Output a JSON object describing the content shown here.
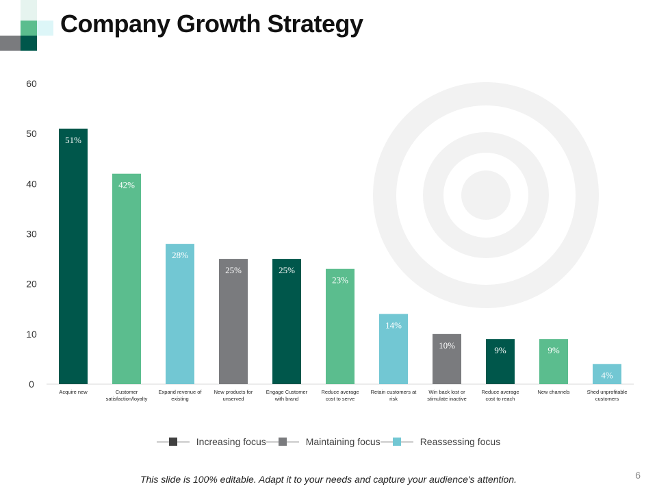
{
  "slide": {
    "title": "Company Growth Strategy",
    "footer": "This slide is 100% editable. Adapt it to your needs and capture your audience's attention.",
    "page_number": "6"
  },
  "colors": {
    "increasing": "#00574B",
    "increasing_swatch": "#404040",
    "maintaining": "#7A7B7E",
    "reassessing": "#72C7D3",
    "green_light": "#5BBD8E",
    "title": "#111111",
    "deco_ring": "#F2F2F2"
  },
  "chart_data": {
    "type": "bar",
    "title": "",
    "xlabel": "",
    "ylabel": "",
    "ylim": [
      0,
      60
    ],
    "yticks": [
      0,
      10,
      20,
      30,
      40,
      50,
      60
    ],
    "grid": false,
    "categories": [
      [
        "Acquire new"
      ],
      [
        "Customer",
        "satisfaction/loyalty"
      ],
      [
        "Expand revenue of",
        "existing"
      ],
      [
        "New products for",
        "unserved"
      ],
      [
        "Engage Customer",
        "with brand"
      ],
      [
        "Reduce average",
        "cost to serve"
      ],
      [
        "Retain customers at",
        "risk"
      ],
      [
        "Win back lost or",
        "stimulate inactive"
      ],
      [
        "Reduce average",
        "cost to reach"
      ],
      [
        "New channels"
      ],
      [
        "Shed unprofitable",
        "customers"
      ]
    ],
    "values": [
      51,
      42,
      28,
      25,
      25,
      23,
      14,
      10,
      9,
      9,
      4
    ],
    "data_labels": [
      "51%",
      "42%",
      "28%",
      "25%",
      "25%",
      "23%",
      "14%",
      "10%",
      "9%",
      "9%",
      "4%"
    ],
    "bar_colors": [
      "#00574B",
      "#5BBD8E",
      "#72C7D3",
      "#7A7B7E",
      "#00574B",
      "#5BBD8E",
      "#72C7D3",
      "#7A7B7E",
      "#00574B",
      "#5BBD8E",
      "#72C7D3"
    ],
    "legend": [
      {
        "label": "Increasing focus",
        "color": "#404040"
      },
      {
        "label": "Maintaining focus",
        "color": "#7A7B7E"
      },
      {
        "label": "Reassessing focus",
        "color": "#72C7D3"
      }
    ],
    "legend_position": "bottom"
  }
}
